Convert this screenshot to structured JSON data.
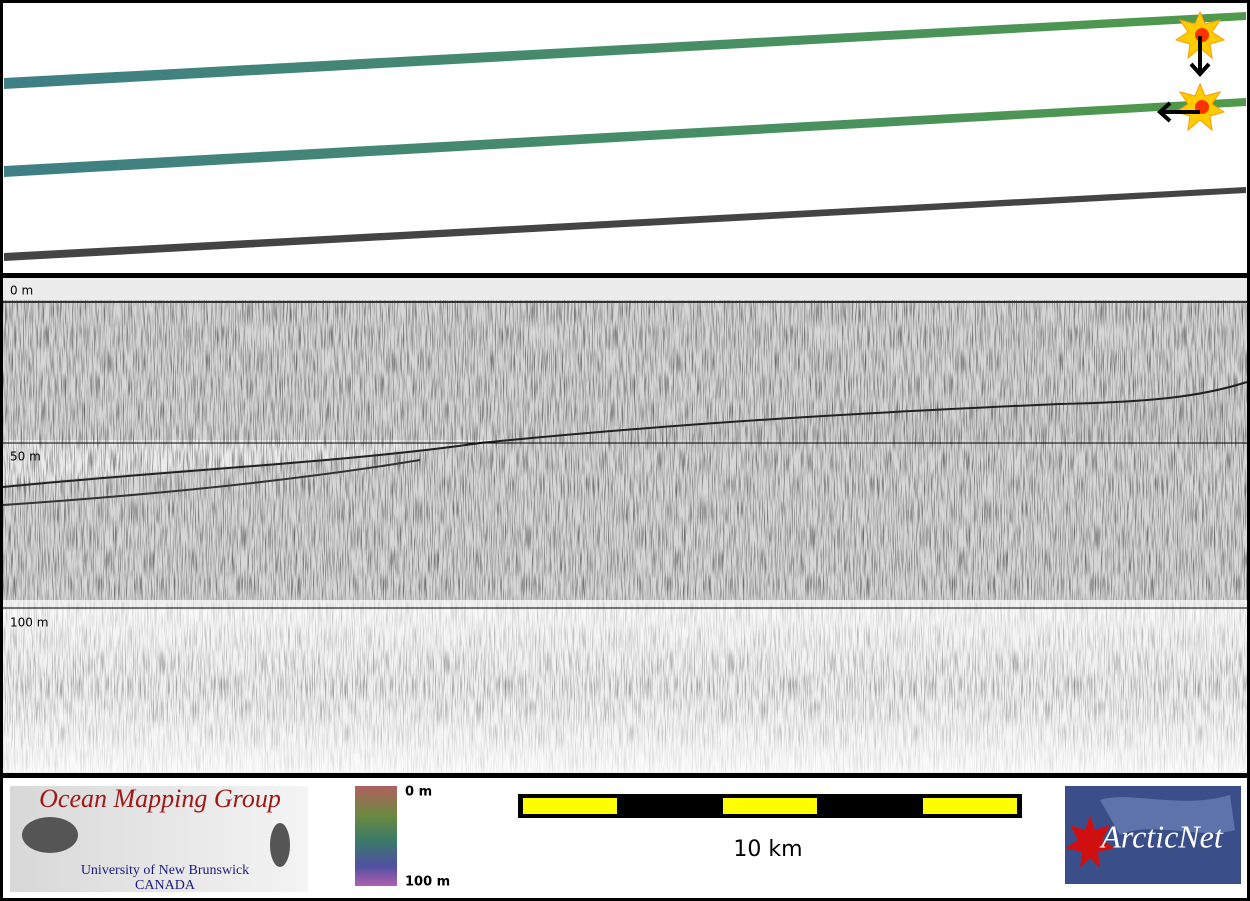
{
  "map_panel": {},
  "profile": {
    "depth_labels": [
      "0 m",
      "50 m",
      "100 m"
    ]
  },
  "footer": {
    "logo": {
      "title": "Ocean Mapping Group",
      "line1": "University of New Brunswick",
      "line2": "CANADA"
    },
    "colorbar": {
      "top_label": "0 m",
      "bottom_label": "100 m"
    },
    "scale_bar": {
      "label": "10 km"
    },
    "partner_logo": {
      "text": "ArcticNet"
    }
  }
}
